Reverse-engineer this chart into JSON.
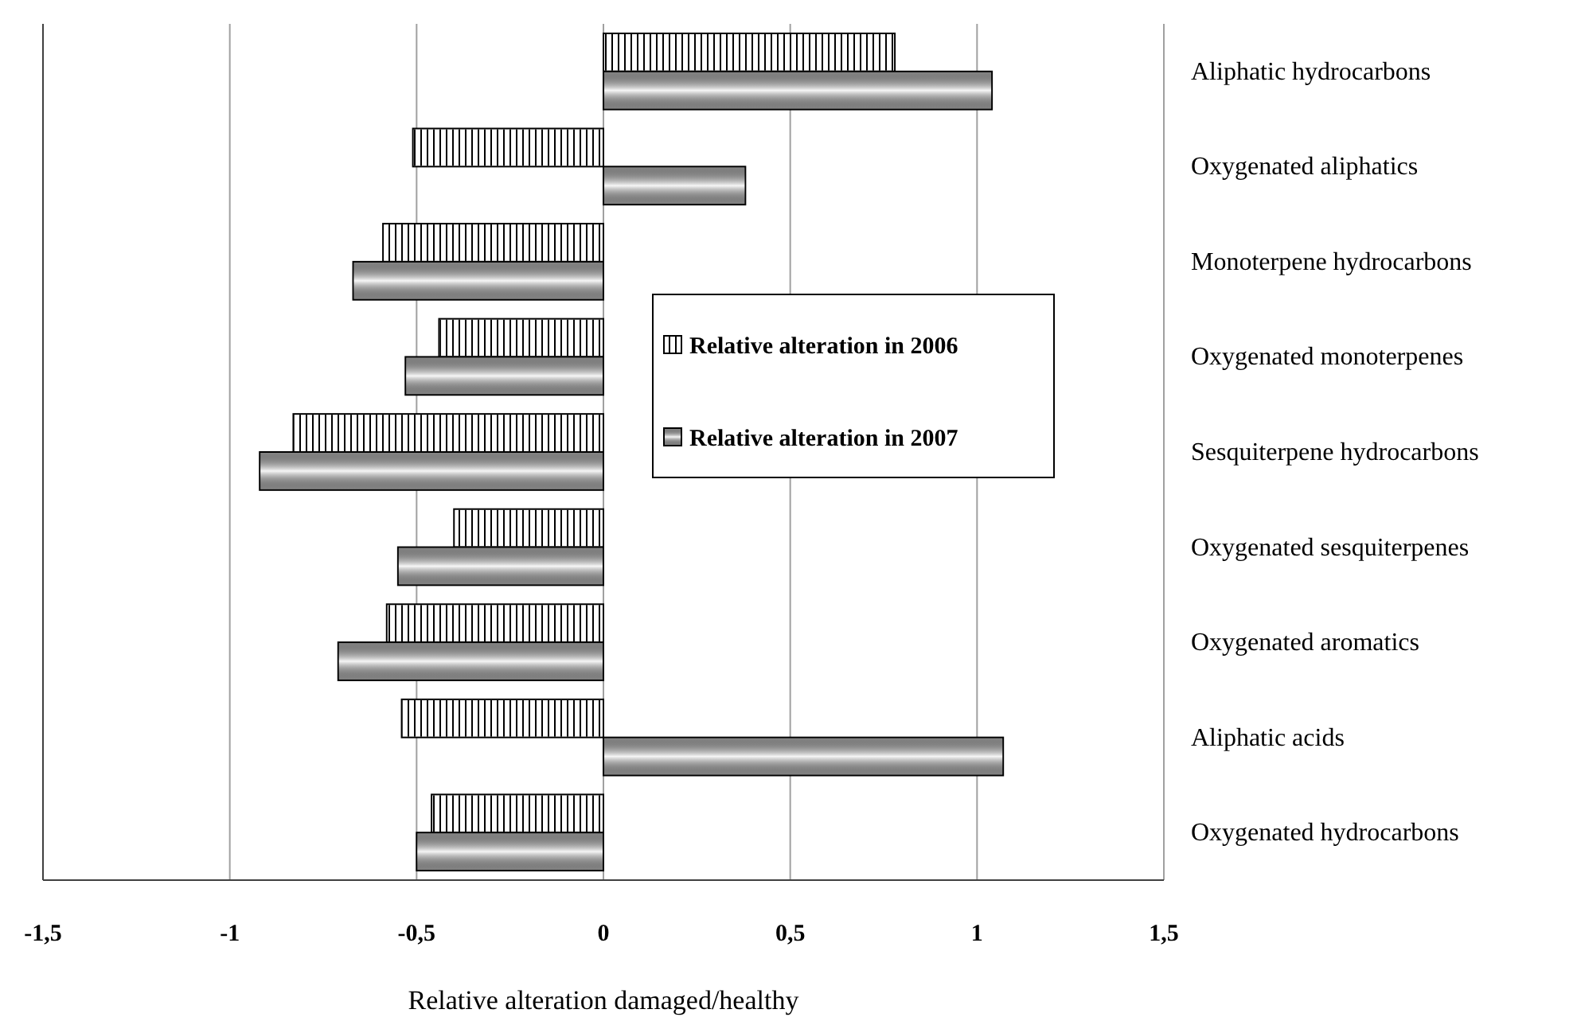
{
  "chart_data": {
    "type": "bar",
    "orientation": "horizontal",
    "xlabel": "Relative alteration damaged/healthy",
    "categories": [
      "Aliphatic hydrocarbons",
      "Oxygenated aliphatics",
      "Monoterpene hydrocarbons",
      "Oxygenated monoterpenes",
      "Sesquiterpene hydrocarbons",
      "Oxygenated sesquiterpenes",
      "Oxygenated aromatics",
      "Aliphatic acids",
      "Oxygenated hydrocarbons"
    ],
    "series": [
      {
        "name": "Relative alteration in 2006",
        "color": "#ffffff",
        "values": [
          0.78,
          -0.51,
          -0.59,
          -0.44,
          -0.83,
          -0.4,
          -0.58,
          -0.54,
          -0.46
        ]
      },
      {
        "name": "Relative alteration in 2007",
        "color": "#a6a6a6",
        "values": [
          1.04,
          0.38,
          -0.67,
          -0.53,
          -0.92,
          -0.55,
          -0.71,
          1.07,
          -0.5
        ]
      }
    ],
    "xlim": [
      -1.5,
      1.5
    ],
    "xticks": [
      {
        "value": -1.5,
        "label": "-1,5"
      },
      {
        "value": -1,
        "label": "-1"
      },
      {
        "value": -0.5,
        "label": "-0,5"
      },
      0,
      {
        "value": 0.5,
        "label": "0,5"
      },
      1,
      {
        "value": 1.5,
        "label": "1,5"
      }
    ],
    "grid": "x",
    "legend": "right"
  }
}
